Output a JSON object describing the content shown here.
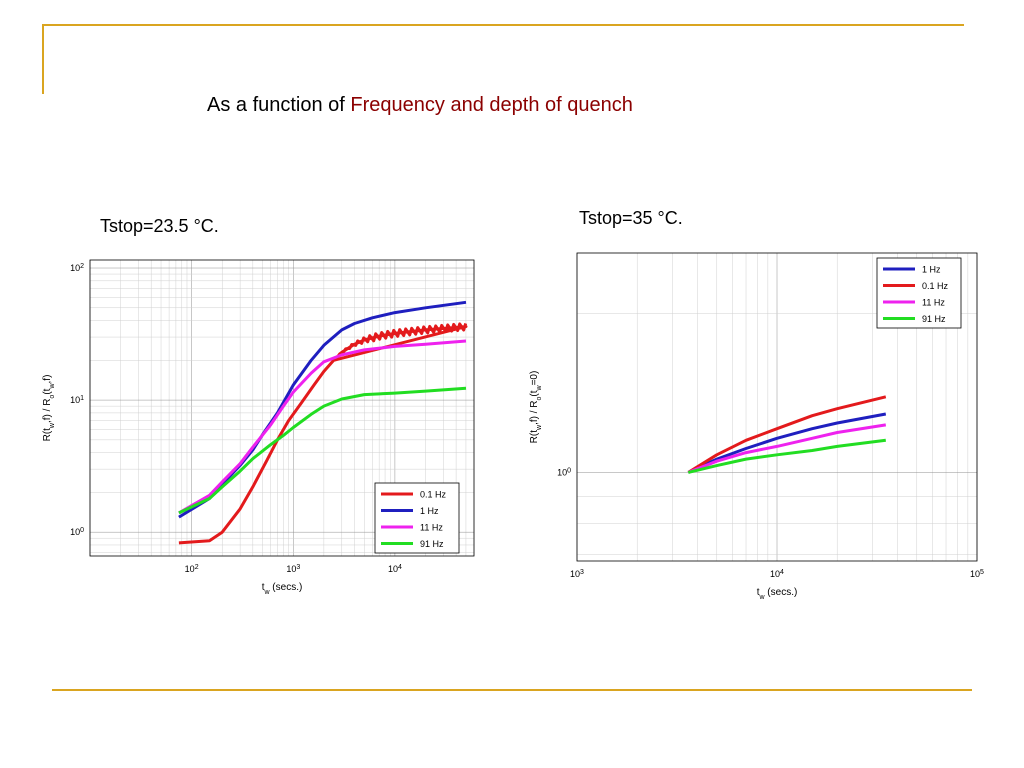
{
  "slide": {
    "title_plain": "As a function of ",
    "title_accent": "Frequency and depth of quench"
  },
  "colors": {
    "accent": "#8B0000",
    "gold": "#DAA520"
  },
  "chart_data": [
    {
      "type": "line",
      "title": "Tstop=23.5 °C.",
      "xscale": "log",
      "yscale": "log",
      "xlim": [
        10,
        60000
      ],
      "ylim": [
        0.66,
        115
      ],
      "x_ticks": [
        100,
        1000,
        10000
      ],
      "x_tick_labels": [
        [
          "10",
          "2"
        ],
        [
          "10",
          "3"
        ],
        [
          "10",
          "4"
        ]
      ],
      "y_ticks": [
        1,
        10,
        100
      ],
      "y_tick_labels": [
        [
          "10",
          "0"
        ],
        [
          "10",
          "1"
        ],
        [
          "10",
          "2"
        ]
      ],
      "xlabel": {
        "main": "t",
        "sub": "w",
        "rest": "  (secs.)"
      },
      "ylabel": [
        [
          "R(t",
          ""
        ],
        [
          "w",
          "sub"
        ],
        [
          ",f) / R",
          ""
        ],
        [
          "o",
          "sub"
        ],
        [
          "(t",
          ""
        ],
        [
          "w",
          "sub"
        ],
        [
          ",f)",
          ""
        ]
      ],
      "grid": true,
      "legend_position": "bottom-right",
      "series": [
        {
          "name": "0.1 Hz",
          "color": "#E31A1C",
          "noisy_tail": true,
          "points": [
            [
              75,
              0.83
            ],
            [
              150,
              0.86
            ],
            [
              200,
              1.0
            ],
            [
              300,
              1.5
            ],
            [
              400,
              2.2
            ],
            [
              550,
              3.5
            ],
            [
              700,
              5.0
            ],
            [
              900,
              7.0
            ],
            [
              1200,
              9.5
            ],
            [
              1600,
              13.0
            ],
            [
              2000,
              16.5
            ],
            [
              2500,
              20.0
            ],
            [
              3000,
              23.0
            ],
            [
              4000,
              26.5
            ],
            [
              5000,
              28.5
            ],
            [
              7000,
              30.5
            ],
            [
              10000,
              32.0
            ],
            [
              20000,
              34.0
            ],
            [
              50000,
              36.0
            ]
          ]
        },
        {
          "name": "1 Hz",
          "color": "#1F1FBF",
          "points": [
            [
              75,
              1.3
            ],
            [
              150,
              1.8
            ],
            [
              200,
              2.3
            ],
            [
              300,
              3.2
            ],
            [
              400,
              4.2
            ],
            [
              500,
              5.5
            ],
            [
              700,
              8.0
            ],
            [
              1000,
              13.0
            ],
            [
              1500,
              20.0
            ],
            [
              2000,
              26.0
            ],
            [
              3000,
              34.0
            ],
            [
              4000,
              38.0
            ],
            [
              6000,
              42.0
            ],
            [
              10000,
              46.0
            ],
            [
              20000,
              50.0
            ],
            [
              50000,
              55.0
            ]
          ]
        },
        {
          "name": "11 Hz",
          "color": "#EE22EE",
          "points": [
            [
              75,
              1.4
            ],
            [
              150,
              1.9
            ],
            [
              200,
              2.4
            ],
            [
              300,
              3.3
            ],
            [
              400,
              4.4
            ],
            [
              600,
              6.5
            ],
            [
              800,
              9.0
            ],
            [
              1000,
              11.5
            ],
            [
              1500,
              16.0
            ],
            [
              2000,
              19.5
            ],
            [
              3000,
              22.0
            ],
            [
              5000,
              24.0
            ],
            [
              10000,
              25.5
            ],
            [
              20000,
              26.5
            ],
            [
              50000,
              28.0
            ]
          ]
        },
        {
          "name": "91 Hz",
          "color": "#22DD22",
          "points": [
            [
              75,
              1.4
            ],
            [
              150,
              1.8
            ],
            [
              200,
              2.2
            ],
            [
              300,
              2.9
            ],
            [
              400,
              3.6
            ],
            [
              600,
              4.6
            ],
            [
              800,
              5.4
            ],
            [
              1000,
              6.2
            ],
            [
              1500,
              7.8
            ],
            [
              2000,
              9.0
            ],
            [
              3000,
              10.2
            ],
            [
              5000,
              11.0
            ],
            [
              10000,
              11.3
            ],
            [
              20000,
              11.7
            ],
            [
              50000,
              12.3
            ]
          ]
        }
      ]
    },
    {
      "type": "line",
      "title": "Tstop=35 °C.",
      "xscale": "log",
      "yscale": "log",
      "xlim": [
        1000,
        100000
      ],
      "ylim": [
        0.68,
        2.6
      ],
      "x_ticks": [
        1000,
        10000,
        100000
      ],
      "x_tick_labels": [
        [
          "10",
          "3"
        ],
        [
          "10",
          "4"
        ],
        [
          "10",
          "5"
        ]
      ],
      "y_ticks": [
        1
      ],
      "y_tick_labels": [
        [
          "10",
          "0"
        ]
      ],
      "xlabel": {
        "main": "t",
        "sub": "w",
        "rest": "  (secs.)"
      },
      "ylabel": [
        [
          "R(t",
          ""
        ],
        [
          "w",
          "sub"
        ],
        [
          ",f) / R",
          ""
        ],
        [
          "o",
          "sub"
        ],
        [
          "(t",
          ""
        ],
        [
          "w",
          "sub"
        ],
        [
          "=0)",
          ""
        ]
      ],
      "grid": true,
      "legend_position": "top-right",
      "series": [
        {
          "name": "1 Hz",
          "color": "#1F1FBF",
          "points": [
            [
              3600,
              1.0
            ],
            [
              5000,
              1.06
            ],
            [
              7000,
              1.11
            ],
            [
              10000,
              1.16
            ],
            [
              15000,
              1.21
            ],
            [
              20000,
              1.24
            ],
            [
              35000,
              1.29
            ]
          ]
        },
        {
          "name": "0.1 Hz",
          "color": "#E31A1C",
          "points": [
            [
              3600,
              1.0
            ],
            [
              5000,
              1.08
            ],
            [
              7000,
              1.15
            ],
            [
              10000,
              1.21
            ],
            [
              15000,
              1.28
            ],
            [
              20000,
              1.32
            ],
            [
              35000,
              1.39
            ]
          ]
        },
        {
          "name": "11 Hz",
          "color": "#EE22EE",
          "points": [
            [
              3600,
              1.0
            ],
            [
              5000,
              1.05
            ],
            [
              7000,
              1.09
            ],
            [
              10000,
              1.12
            ],
            [
              15000,
              1.16
            ],
            [
              20000,
              1.19
            ],
            [
              35000,
              1.23
            ]
          ]
        },
        {
          "name": "91 Hz",
          "color": "#22DD22",
          "points": [
            [
              3600,
              1.0
            ],
            [
              5000,
              1.03
            ],
            [
              7000,
              1.06
            ],
            [
              10000,
              1.08
            ],
            [
              15000,
              1.1
            ],
            [
              20000,
              1.12
            ],
            [
              35000,
              1.15
            ]
          ]
        }
      ]
    }
  ]
}
